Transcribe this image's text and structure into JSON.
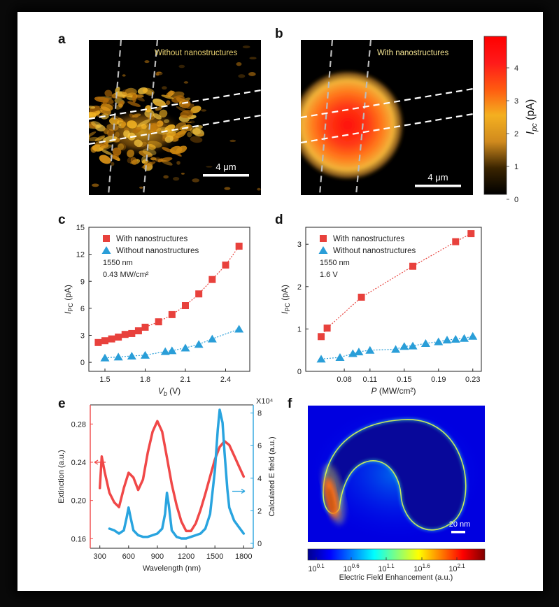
{
  "panel_labels": [
    "a",
    "b",
    "c",
    "d",
    "e",
    "f"
  ],
  "map_a": {
    "caption": "Without  nanostructures",
    "scalebar": "4 μm"
  },
  "map_b": {
    "caption": "With  nanostructures",
    "scalebar": "4 μm"
  },
  "colorbar_ab": {
    "ticks": [
      "0",
      "1",
      "2",
      "3",
      "4"
    ],
    "label_main": "I",
    "label_sub": "pc",
    "label_unit": " (pA)",
    "stops": [
      "#000000",
      "#3a2400",
      "#d08a1e",
      "#f4b020",
      "#ff5a10",
      "#ff1a1a",
      "#ff0000"
    ]
  },
  "chart_data": [
    {
      "id": "c",
      "type": "scatter",
      "xlabel": "V",
      "xlabel_sub": "b",
      "xlabel_unit": " (V)",
      "ylabel": "I",
      "ylabel_sub": "PC",
      "ylabel_unit": " (pA)",
      "xlim": [
        1.38,
        2.58
      ],
      "ylim": [
        -1,
        15
      ],
      "xticks": [
        "1.5",
        "1.8",
        "2.1",
        "2.4"
      ],
      "yticks": [
        "0",
        "3",
        "6",
        "9",
        "12",
        "15"
      ],
      "annotations": [
        "1550 nm",
        "0.43 MW/cm²"
      ],
      "series": [
        {
          "name": "With nanostructures",
          "color": "#e8413c",
          "marker": "square",
          "x": [
            1.45,
            1.5,
            1.55,
            1.6,
            1.65,
            1.7,
            1.75,
            1.8,
            1.9,
            2.0,
            2.1,
            2.2,
            2.3,
            2.4,
            2.5
          ],
          "y": [
            2.2,
            2.4,
            2.6,
            2.8,
            3.1,
            3.2,
            3.5,
            3.9,
            4.5,
            5.3,
            6.3,
            7.6,
            9.2,
            10.8,
            12.9
          ]
        },
        {
          "name": "Without nanostructures",
          "color": "#2a9ed8",
          "marker": "triangle",
          "x": [
            1.5,
            1.6,
            1.7,
            1.8,
            1.95,
            2.0,
            2.1,
            2.2,
            2.3,
            2.5
          ],
          "y": [
            0.5,
            0.6,
            0.7,
            0.8,
            1.2,
            1.3,
            1.6,
            2.0,
            2.6,
            3.7
          ]
        }
      ]
    },
    {
      "id": "d",
      "type": "scatter",
      "xlabel": "P",
      "xlabel_sub": "",
      "xlabel_unit": " (MW/cm²)",
      "ylabel": "I",
      "ylabel_sub": "PC",
      "ylabel_unit": " (pA)",
      "xlim": [
        0.035,
        0.24
      ],
      "ylim": [
        0,
        3.4
      ],
      "xticks": [
        "0.08",
        "0.11",
        "0.15",
        "0.19",
        "0.23"
      ],
      "yticks": [
        "0",
        "1",
        "2",
        "3"
      ],
      "annotations": [
        "1550 nm",
        "1.6 V"
      ],
      "series": [
        {
          "name": "With nanostructures",
          "color": "#e8413c",
          "marker": "square",
          "x": [
            0.053,
            0.06,
            0.1,
            0.16,
            0.21,
            0.228
          ],
          "y": [
            0.82,
            1.02,
            1.75,
            2.48,
            3.06,
            3.25
          ]
        },
        {
          "name": "Without nanostructures",
          "color": "#2a9ed8",
          "marker": "triangle",
          "x": [
            0.053,
            0.075,
            0.09,
            0.097,
            0.11,
            0.14,
            0.15,
            0.16,
            0.175,
            0.19,
            0.2,
            0.21,
            0.22,
            0.23
          ],
          "y": [
            0.29,
            0.33,
            0.42,
            0.46,
            0.5,
            0.52,
            0.59,
            0.6,
            0.66,
            0.7,
            0.74,
            0.76,
            0.78,
            0.83
          ]
        }
      ]
    },
    {
      "id": "e",
      "type": "line",
      "xlabel": "Wavelength (nm)",
      "ylabel_left": "Extinction (a.u.)",
      "ylabel_right": "Calculated E field (a.u.)",
      "right_multiplier": "X10⁴",
      "xlim": [
        200,
        1900
      ],
      "ylim_left": [
        0.15,
        0.3
      ],
      "ylim_right": [
        -0.3,
        8.5
      ],
      "xticks": [
        "300",
        "600",
        "900",
        "1200",
        "1500",
        "1800"
      ],
      "yticks_left": [
        "0.16",
        "0.20",
        "0.24",
        "0.28"
      ],
      "yticks_right": [
        "0",
        "2",
        "4",
        "6",
        "8"
      ],
      "series": [
        {
          "name": "Extinction",
          "axis": "left",
          "color": "#f04848",
          "x": [
            300,
            320,
            350,
            400,
            450,
            500,
            550,
            600,
            650,
            700,
            750,
            800,
            850,
            900,
            950,
            1000,
            1050,
            1100,
            1150,
            1200,
            1250,
            1300,
            1350,
            1400,
            1450,
            1500,
            1550,
            1600,
            1650,
            1700,
            1750,
            1800
          ],
          "y": [
            0.213,
            0.246,
            0.23,
            0.208,
            0.198,
            0.193,
            0.213,
            0.229,
            0.224,
            0.211,
            0.222,
            0.25,
            0.272,
            0.283,
            0.272,
            0.245,
            0.217,
            0.195,
            0.178,
            0.168,
            0.168,
            0.176,
            0.19,
            0.207,
            0.225,
            0.243,
            0.256,
            0.262,
            0.258,
            0.247,
            0.236,
            0.225
          ]
        },
        {
          "name": "Calculated E field",
          "axis": "right",
          "color": "#29a4df",
          "x": [
            400,
            450,
            500,
            550,
            580,
            600,
            620,
            650,
            700,
            750,
            800,
            850,
            900,
            950,
            980,
            1000,
            1020,
            1050,
            1100,
            1150,
            1200,
            1250,
            1300,
            1350,
            1400,
            1450,
            1500,
            1530,
            1550,
            1580,
            1600,
            1630,
            1650,
            1700,
            1750,
            1800
          ],
          "y": [
            0.9,
            0.8,
            0.6,
            0.8,
            1.6,
            2.2,
            1.6,
            0.8,
            0.5,
            0.4,
            0.4,
            0.5,
            0.6,
            0.9,
            1.8,
            3.1,
            2.3,
            0.8,
            0.4,
            0.3,
            0.3,
            0.4,
            0.5,
            0.6,
            0.9,
            1.8,
            4.5,
            7.0,
            8.2,
            7.4,
            5.6,
            3.3,
            2.2,
            1.4,
            1.0,
            0.6
          ]
        }
      ]
    }
  ],
  "panel_f": {
    "scalebar": "20 nm",
    "colorbar_ticks": [
      "10^0.1",
      "10^0.6",
      "10^1.1",
      "10^1.6",
      "10^2.1"
    ],
    "colorbar_label": "Electric Field Enhancement (a.u.)",
    "jet": [
      "#00008f",
      "#0000ff",
      "#0080ff",
      "#00ffff",
      "#80ff80",
      "#ffff00",
      "#ff8000",
      "#ff0000",
      "#800000"
    ]
  }
}
